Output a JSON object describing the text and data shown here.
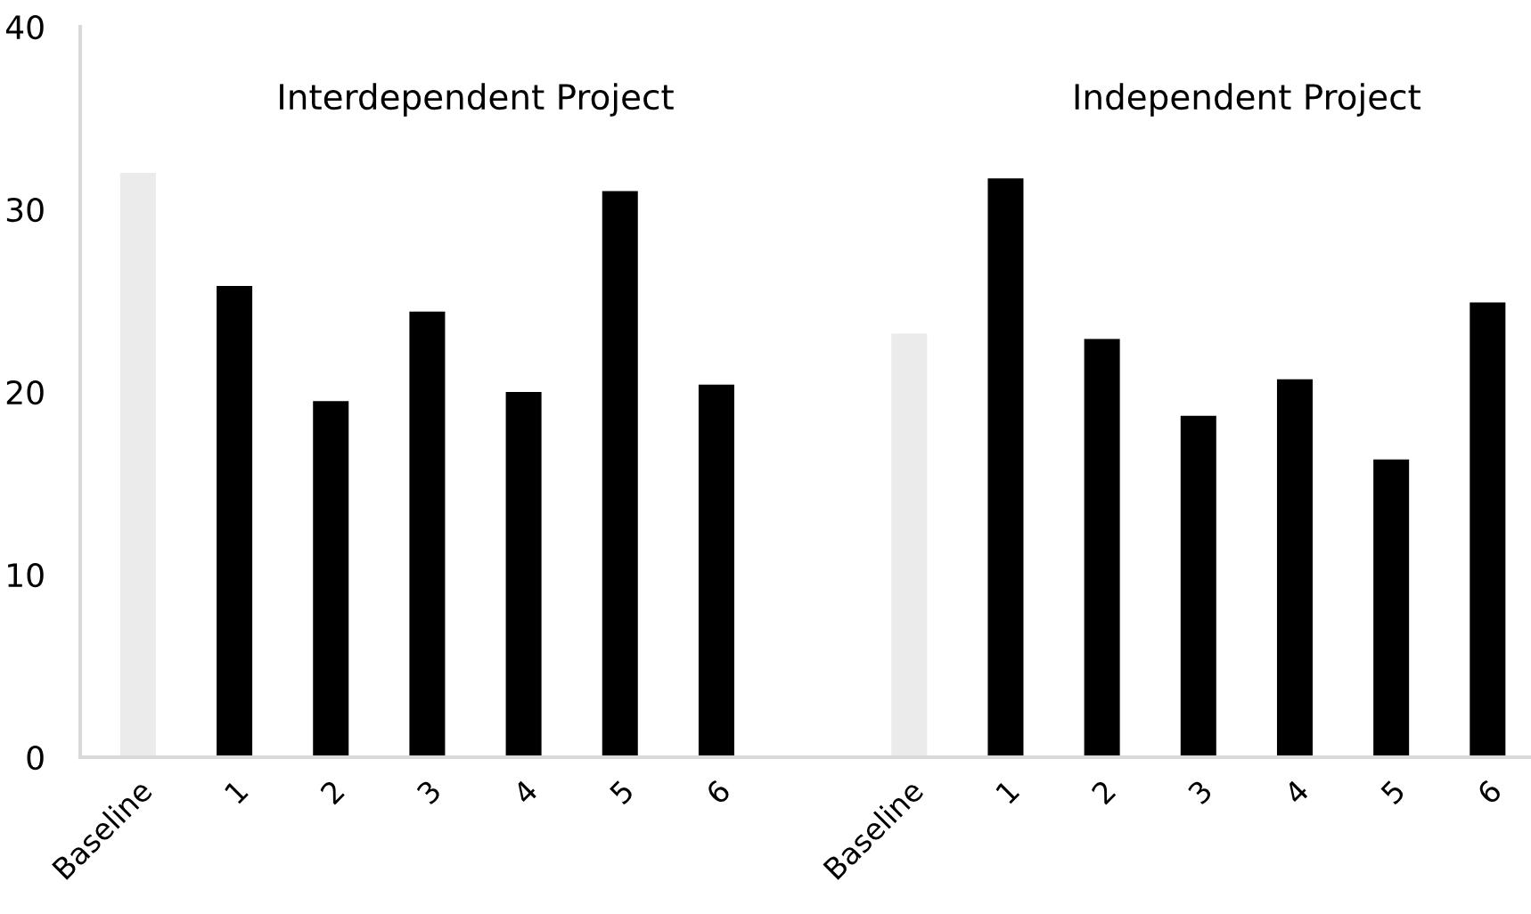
{
  "chart_data": {
    "type": "bar",
    "categories": [
      "Baseline",
      "1",
      "2",
      "3",
      "4",
      "5",
      "6",
      null,
      "Baseline",
      "1",
      "2",
      "3",
      "4",
      "5",
      "6"
    ],
    "values": [
      32.0,
      25.8,
      19.5,
      24.4,
      20.0,
      31.0,
      20.4,
      null,
      23.2,
      31.7,
      22.9,
      18.7,
      20.7,
      16.3,
      24.9
    ],
    "colors": [
      "#ebebeb",
      "#000000",
      "#000000",
      "#000000",
      "#000000",
      "#000000",
      "#000000",
      "#000000",
      "#ebebeb",
      "#000000",
      "#000000",
      "#000000",
      "#000000",
      "#000000",
      "#000000"
    ],
    "ylim": [
      0,
      40
    ],
    "yticks": [
      0,
      10,
      20,
      30,
      40
    ],
    "annotations": [
      "Interdependent Project",
      "Independent Project"
    ],
    "grid": false,
    "legend": false
  }
}
